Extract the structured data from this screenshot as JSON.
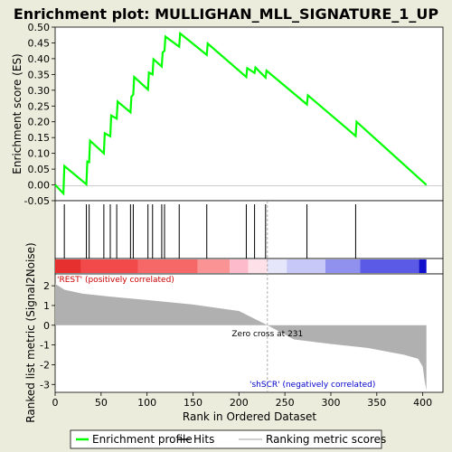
{
  "chart_data": {
    "type": "line",
    "title": "Enrichment plot: MULLIGHAN_MLL_SIGNATURE_1_UP",
    "xlabel": "Rank in Ordered Dataset",
    "ylabel_top": "Enrichment score (ES)",
    "ylabel_bottom": "Ranked list metric (Signal2Noise)",
    "x_range": [
      0,
      422
    ],
    "x_ticks": [
      0,
      50,
      100,
      150,
      200,
      250,
      300,
      350,
      400
    ],
    "es_ylim": [
      -0.05,
      0.5
    ],
    "es_ticks": [
      "-0.05",
      "0.00",
      "0.05",
      "0.10",
      "0.15",
      "0.20",
      "0.25",
      "0.30",
      "0.35",
      "0.40",
      "0.45",
      "0.50"
    ],
    "metric_ylim": [
      -3.4,
      2.6
    ],
    "metric_ticks": [
      -3,
      -2,
      -1,
      0,
      1,
      2
    ],
    "series": [
      {
        "name": "Enrichment profile",
        "color": "#00ff00",
        "x": [
          0,
          9,
          10,
          34,
          35,
          37,
          38,
          53,
          54,
          60,
          61,
          67,
          68,
          82,
          83,
          85,
          86,
          101,
          102,
          106,
          107,
          116,
          117,
          119,
          120,
          135,
          136,
          165,
          166,
          208,
          209,
          217,
          218,
          229,
          230,
          274,
          275,
          327,
          328,
          404
        ],
        "y": [
          0.0,
          -0.027,
          0.06,
          0.002,
          0.074,
          0.072,
          0.14,
          0.1,
          0.164,
          0.154,
          0.22,
          0.21,
          0.264,
          0.23,
          0.28,
          0.286,
          0.342,
          0.302,
          0.356,
          0.35,
          0.398,
          0.375,
          0.42,
          0.425,
          0.47,
          0.438,
          0.48,
          0.412,
          0.448,
          0.342,
          0.37,
          0.355,
          0.372,
          0.34,
          0.362,
          0.255,
          0.284,
          0.155,
          0.2,
          0.0
        ]
      }
    ],
    "hits": [
      10,
      34,
      37,
      53,
      60,
      67,
      82,
      85,
      101,
      106,
      116,
      119,
      135,
      165,
      208,
      217,
      229,
      274,
      327
    ],
    "metric_points": {
      "x": [
        0,
        10,
        30,
        60,
        100,
        150,
        200,
        231,
        260,
        300,
        340,
        380,
        395,
        400,
        402,
        404
      ],
      "y": [
        2.1,
        1.8,
        1.6,
        1.45,
        1.28,
        1.05,
        0.72,
        0.0,
        -0.72,
        -0.95,
        -1.15,
        -1.5,
        -1.7,
        -2.1,
        -2.8,
        -3.3
      ]
    },
    "zero_cross_rank": 231,
    "zero_cross_label": "Zero cross at 231",
    "pos_label": "'REST' (positively correlated)",
    "neg_label": "'shSCR' (negatively correlated)",
    "legend": [
      {
        "label": "Enrichment profile",
        "color": "#00ff00"
      },
      {
        "label": "Hits",
        "color": "#000000"
      },
      {
        "label": "Ranking metric scores",
        "color": "#c0c0c0"
      }
    ],
    "colors": {
      "background": "#ececdc",
      "plot_bg": "#ffffff",
      "profile": "#00ff00",
      "metric_fill": "#b0b0b0",
      "pos_text": "#cc0000",
      "neg_text": "#0000cc"
    },
    "colorbar": [
      {
        "from": 0,
        "to": 28,
        "color": "#e63030"
      },
      {
        "from": 28,
        "to": 90,
        "color": "#f24a4a"
      },
      {
        "from": 90,
        "to": 155,
        "color": "#f66868"
      },
      {
        "from": 155,
        "to": 190,
        "color": "#fa9494"
      },
      {
        "from": 190,
        "to": 210,
        "color": "#fdbaca"
      },
      {
        "from": 210,
        "to": 231,
        "color": "#fde0e8"
      },
      {
        "from": 231,
        "to": 252,
        "color": "#e6e6fa"
      },
      {
        "from": 252,
        "to": 294,
        "color": "#c8c8f8"
      },
      {
        "from": 294,
        "to": 332,
        "color": "#9090ee"
      },
      {
        "from": 332,
        "to": 396,
        "color": "#5a5ae6"
      },
      {
        "from": 396,
        "to": 404,
        "color": "#1010cc"
      }
    ]
  }
}
